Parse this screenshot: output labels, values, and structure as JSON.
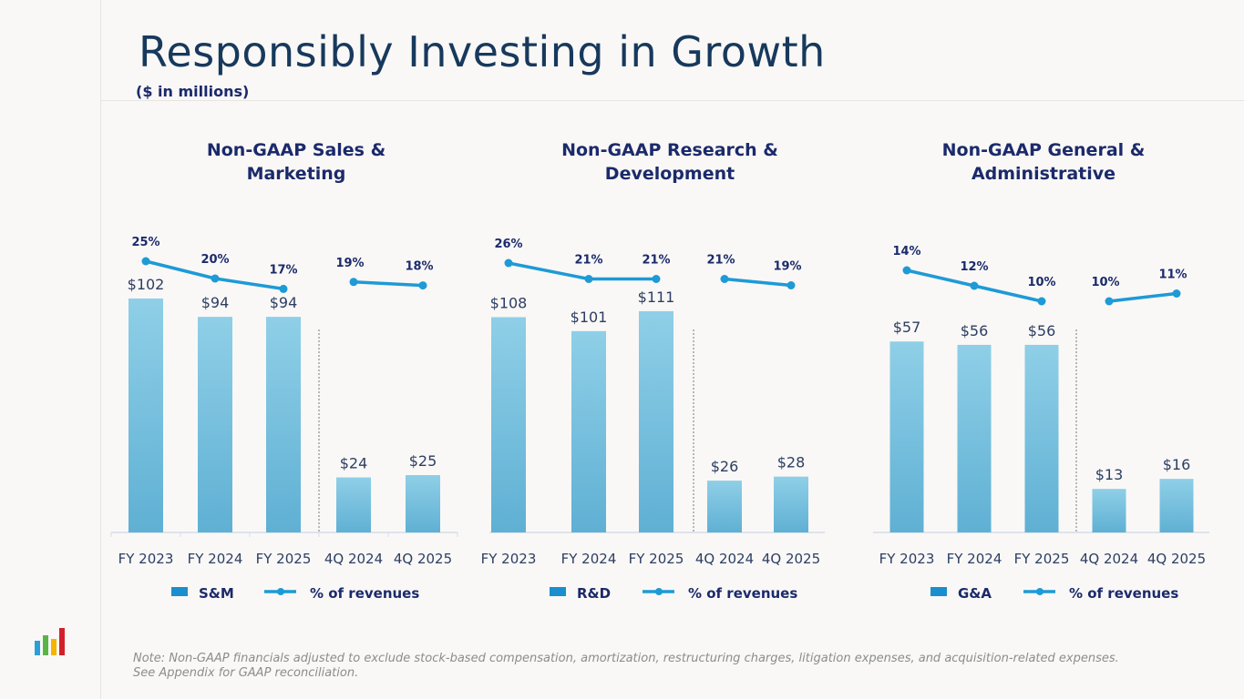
{
  "page": {
    "title": "Responsibly Investing in Growth",
    "subtitle": "($ in millions)",
    "note_line1": "Note: Non-GAAP financials adjusted to exclude stock-based compensation, amortization, restructuring charges, litigation expenses, and acquisition-related expenses.",
    "note_line2": "See Appendix for GAAP reconciliation.",
    "logo_icon": "bar-chart-logo-icon",
    "colors": {
      "title": "#17395c",
      "heading": "#1b2a6b",
      "bar_top": "#8dcde6",
      "bar_bottom": "#5fb0d4",
      "line": "#1e9ad6",
      "legend_bar": "#1a8ecf",
      "axis_label": "#2d3e63",
      "note": "#8c8c8c"
    }
  },
  "chart_data": [
    {
      "type": "bar",
      "title": "Non-GAAP Sales & Marketing",
      "title_lines": [
        "Non-GAAP Sales &",
        "Marketing"
      ],
      "categories": [
        "FY 2023",
        "FY 2024",
        "FY 2025",
        "4Q 2024",
        "4Q 2025"
      ],
      "series": [
        {
          "name": "S&M",
          "kind": "bar",
          "values": [
            102,
            94,
            94,
            24,
            25
          ],
          "labels": [
            "$102",
            "$94",
            "$94",
            "$24",
            "$25"
          ]
        },
        {
          "name": "% of revenues",
          "kind": "line",
          "values": [
            25,
            20,
            17,
            19,
            18
          ],
          "labels": [
            "25%",
            "20%",
            "17%",
            "19%",
            "18%"
          ]
        }
      ],
      "line_segments": [
        [
          0,
          1,
          2
        ],
        [
          3,
          4
        ]
      ],
      "separator_after_index": 2,
      "legend": [
        "S&M",
        "% of revenues"
      ],
      "legend_position": "bottom"
    },
    {
      "type": "bar",
      "title": "Non-GAAP Research & Development",
      "title_lines": [
        "Non-GAAP Research &",
        "Development"
      ],
      "categories": [
        "FY 2023",
        "FY 2024",
        "FY 2025",
        "4Q 2024",
        "4Q 2025"
      ],
      "series": [
        {
          "name": "R&D",
          "kind": "bar",
          "values": [
            108,
            101,
            111,
            26,
            28
          ],
          "labels": [
            "$108",
            "$101",
            "$111",
            "$26",
            "$28"
          ]
        },
        {
          "name": "% of revenues",
          "kind": "line",
          "values": [
            26,
            21,
            21,
            21,
            19
          ],
          "labels": [
            "26%",
            "21%",
            "21%",
            "21%",
            "19%"
          ]
        }
      ],
      "line_segments": [
        [
          0,
          1,
          2
        ],
        [
          3,
          4
        ]
      ],
      "separator_after_index": 2,
      "legend": [
        "R&D",
        "% of revenues"
      ],
      "legend_position": "bottom"
    },
    {
      "type": "bar",
      "title": "Non-GAAP General & Administrative",
      "title_lines": [
        "Non-GAAP General &",
        "Administrative"
      ],
      "categories": [
        "FY 2023",
        "FY 2024",
        "FY 2025",
        "4Q 2024",
        "4Q 2025"
      ],
      "series": [
        {
          "name": "G&A",
          "kind": "bar",
          "values": [
            57,
            56,
            56,
            13,
            16
          ],
          "labels": [
            "$57",
            "$56",
            "$56",
            "$13",
            "$16"
          ]
        },
        {
          "name": "% of revenues",
          "kind": "line",
          "values": [
            14,
            12,
            10,
            10,
            11
          ],
          "labels": [
            "14%",
            "12%",
            "10%",
            "10%",
            "11%"
          ]
        }
      ],
      "line_segments": [
        [
          0,
          1,
          2
        ],
        [
          3,
          4
        ]
      ],
      "separator_after_index": 2,
      "legend": [
        "G&A",
        "% of revenues"
      ],
      "legend_position": "bottom"
    }
  ]
}
